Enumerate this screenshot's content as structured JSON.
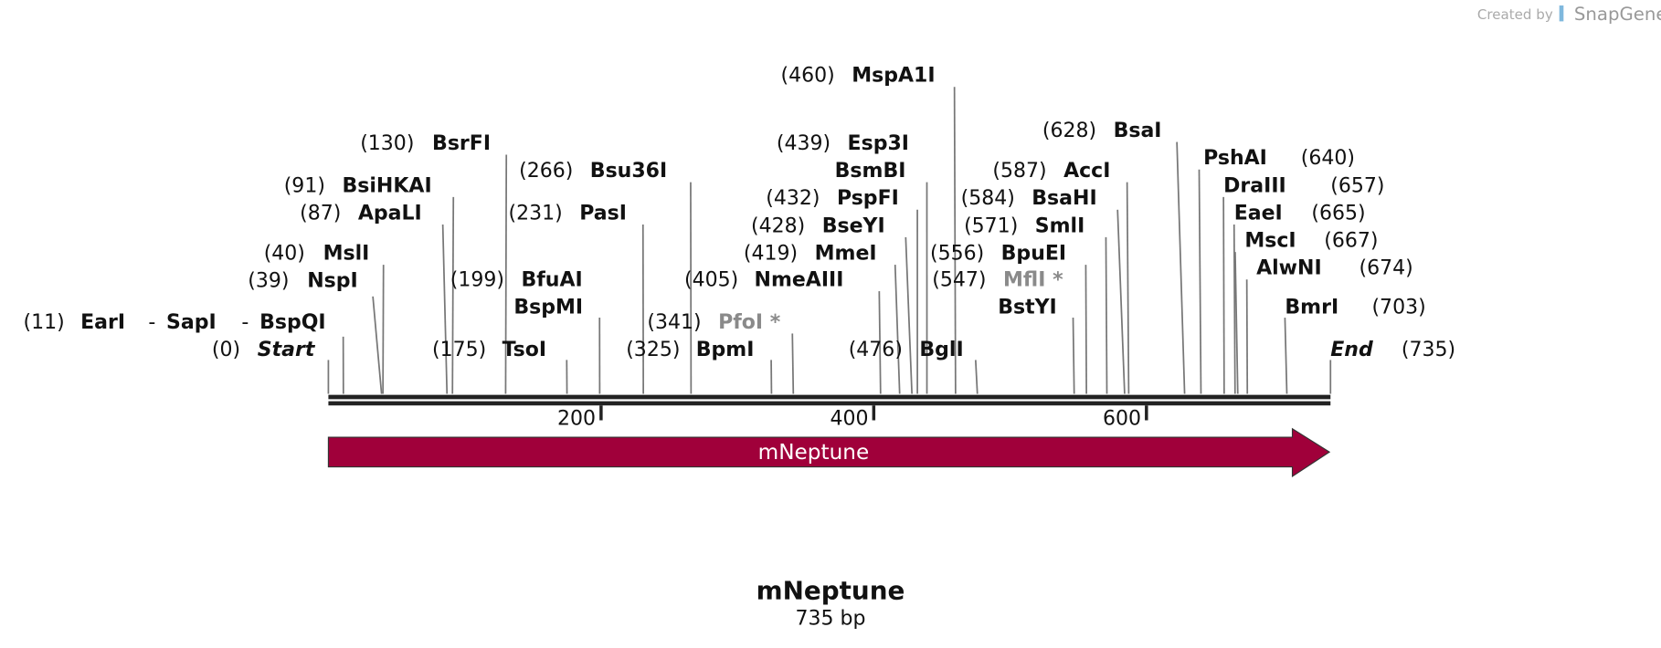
{
  "credit": {
    "prefix": "Created by",
    "brand": "SnapGene"
  },
  "sequence": {
    "name": "mNeptune",
    "length": 735,
    "length_label": "735 bp",
    "ruler_ticks": [
      200,
      400,
      600
    ]
  },
  "feature": {
    "name": "mNeptune",
    "color": "#a0003a"
  },
  "sites": [
    {
      "names": [
        "Start"
      ],
      "position": 0,
      "position_label": "(0)",
      "style": "italic"
    },
    {
      "names": [
        "EarI",
        "SapI",
        "BspQI"
      ],
      "separator": "-",
      "position": 11,
      "position_label": "(11)"
    },
    {
      "names": [
        "NspI"
      ],
      "position": 39,
      "position_label": "(39)"
    },
    {
      "names": [
        "MslI"
      ],
      "position": 40,
      "position_label": "(40)"
    },
    {
      "names": [
        "ApaLI"
      ],
      "position": 87,
      "position_label": "(87)"
    },
    {
      "names": [
        "BsiHKAI"
      ],
      "position": 91,
      "position_label": "(91)"
    },
    {
      "names": [
        "BsrFI"
      ],
      "position": 130,
      "position_label": "(130)"
    },
    {
      "names": [
        "TsoI"
      ],
      "position": 175,
      "position_label": "(175)"
    },
    {
      "names": [
        "BfuAI",
        "BspMI"
      ],
      "position": 199,
      "position_label": "(199)"
    },
    {
      "names": [
        "PasI"
      ],
      "position": 231,
      "position_label": "(231)"
    },
    {
      "names": [
        "Bsu36I"
      ],
      "position": 266,
      "position_label": "(266)"
    },
    {
      "names": [
        "BpmI"
      ],
      "position": 325,
      "position_label": "(325)"
    },
    {
      "names": [
        "PfoI *"
      ],
      "position": 341,
      "position_label": "(341)",
      "color": "#8a8a8a"
    },
    {
      "names": [
        "NmeAIII"
      ],
      "position": 405,
      "position_label": "(405)"
    },
    {
      "names": [
        "MmeI"
      ],
      "position": 419,
      "position_label": "(419)"
    },
    {
      "names": [
        "BseYI"
      ],
      "position": 428,
      "position_label": "(428)"
    },
    {
      "names": [
        "PspFI"
      ],
      "position": 432,
      "position_label": "(432)"
    },
    {
      "names": [
        "Esp3I",
        "BsmBI"
      ],
      "position": 439,
      "position_label": "(439)"
    },
    {
      "names": [
        "MspA1I"
      ],
      "position": 460,
      "position_label": "(460)"
    },
    {
      "names": [
        "BglI"
      ],
      "position": 476,
      "position_label": "(476)"
    },
    {
      "names": [
        "MflI *",
        "BstYI"
      ],
      "position": 547,
      "position_label": "(547)",
      "color": "#8a8a8a"
    },
    {
      "names": [
        "BpuEI"
      ],
      "position": 556,
      "position_label": "(556)"
    },
    {
      "names": [
        "SmlI"
      ],
      "position": 571,
      "position_label": "(571)"
    },
    {
      "names": [
        "BsaHI"
      ],
      "position": 584,
      "position_label": "(584)"
    },
    {
      "names": [
        "AccI"
      ],
      "position": 587,
      "position_label": "(587)"
    },
    {
      "names": [
        "BsaI"
      ],
      "position": 628,
      "position_label": "(628)"
    },
    {
      "names": [
        "PshAI"
      ],
      "position": 640,
      "position_label": "(640)"
    },
    {
      "names": [
        "DraIII"
      ],
      "position": 657,
      "position_label": "(657)"
    },
    {
      "names": [
        "EaeI"
      ],
      "position": 665,
      "position_label": "(665)"
    },
    {
      "names": [
        "MscI"
      ],
      "position": 667,
      "position_label": "(667)"
    },
    {
      "names": [
        "AlwNI"
      ],
      "position": 674,
      "position_label": "(674)"
    },
    {
      "names": [
        "BmrI"
      ],
      "position": 703,
      "position_label": "(703)"
    },
    {
      "names": [
        "End"
      ],
      "position": 735,
      "position_label": "(735)",
      "style": "italic"
    }
  ]
}
